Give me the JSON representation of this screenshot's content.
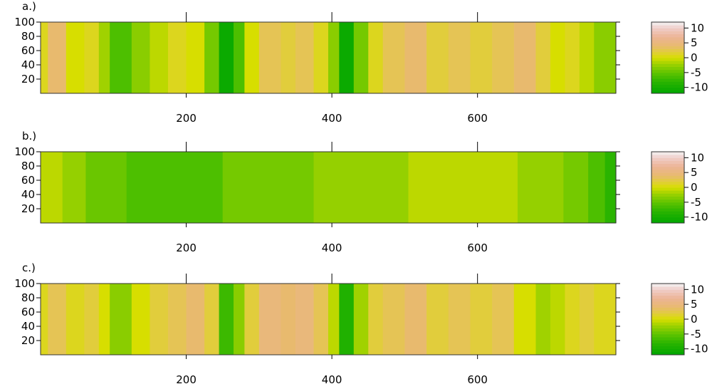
{
  "chart_data": [
    {
      "type": "heatmap",
      "panel_label": "a.)",
      "xlim": [
        0,
        790
      ],
      "ylim": [
        0,
        100
      ],
      "xticks": [
        200,
        400,
        600
      ],
      "yticks": [
        20,
        40,
        60,
        80,
        100
      ],
      "colorbar": {
        "ticks": [
          10,
          5,
          0,
          -5,
          -10
        ],
        "range": [
          -12,
          12
        ]
      },
      "columns": [
        {
          "x0": 0,
          "x1": 10,
          "v": 1
        },
        {
          "x0": 10,
          "x1": 35,
          "v": 4
        },
        {
          "x0": 35,
          "x1": 60,
          "v": 0
        },
        {
          "x0": 60,
          "x1": 80,
          "v": 1
        },
        {
          "x0": 80,
          "x1": 95,
          "v": -2
        },
        {
          "x0": 95,
          "x1": 125,
          "v": -6
        },
        {
          "x0": 125,
          "x1": 150,
          "v": -3
        },
        {
          "x0": 150,
          "x1": 175,
          "v": -1
        },
        {
          "x0": 175,
          "x1": 200,
          "v": 1
        },
        {
          "x0": 200,
          "x1": 225,
          "v": 0
        },
        {
          "x0": 225,
          "x1": 245,
          "v": -4
        },
        {
          "x0": 245,
          "x1": 265,
          "v": -11
        },
        {
          "x0": 265,
          "x1": 280,
          "v": -6
        },
        {
          "x0": 280,
          "x1": 300,
          "v": 0
        },
        {
          "x0": 300,
          "x1": 330,
          "v": 3
        },
        {
          "x0": 330,
          "x1": 350,
          "v": 2
        },
        {
          "x0": 350,
          "x1": 375,
          "v": 3
        },
        {
          "x0": 375,
          "x1": 395,
          "v": 1
        },
        {
          "x0": 395,
          "x1": 410,
          "v": -3
        },
        {
          "x0": 410,
          "x1": 430,
          "v": -11
        },
        {
          "x0": 430,
          "x1": 450,
          "v": -4
        },
        {
          "x0": 450,
          "x1": 470,
          "v": 1
        },
        {
          "x0": 470,
          "x1": 500,
          "v": 3
        },
        {
          "x0": 500,
          "x1": 530,
          "v": 4
        },
        {
          "x0": 530,
          "x1": 560,
          "v": 2
        },
        {
          "x0": 560,
          "x1": 590,
          "v": 3
        },
        {
          "x0": 590,
          "x1": 620,
          "v": 2
        },
        {
          "x0": 620,
          "x1": 650,
          "v": 3
        },
        {
          "x0": 650,
          "x1": 680,
          "v": 4
        },
        {
          "x0": 680,
          "x1": 700,
          "v": 2
        },
        {
          "x0": 700,
          "x1": 720,
          "v": 0
        },
        {
          "x0": 720,
          "x1": 740,
          "v": 1
        },
        {
          "x0": 740,
          "x1": 760,
          "v": -1
        },
        {
          "x0": 760,
          "x1": 790,
          "v": -3
        }
      ]
    },
    {
      "type": "heatmap",
      "panel_label": "b.)",
      "xlim": [
        0,
        790
      ],
      "ylim": [
        0,
        100
      ],
      "xticks": [
        200,
        400,
        600
      ],
      "yticks": [
        20,
        40,
        60,
        80,
        100
      ],
      "colorbar": {
        "ticks": [
          10,
          5,
          0,
          -5,
          -10
        ],
        "range": [
          -12,
          12
        ]
      },
      "columns": [
        {
          "x0": 0,
          "x1": 30,
          "v": -1
        },
        {
          "x0": 30,
          "x1": 62,
          "v": -2.5
        },
        {
          "x0": 62,
          "x1": 118,
          "v": -4.5
        },
        {
          "x0": 118,
          "x1": 250,
          "v": -6
        },
        {
          "x0": 250,
          "x1": 375,
          "v": -4
        },
        {
          "x0": 375,
          "x1": 505,
          "v": -2.5
        },
        {
          "x0": 505,
          "x1": 655,
          "v": -1
        },
        {
          "x0": 655,
          "x1": 718,
          "v": -2.5
        },
        {
          "x0": 718,
          "x1": 752,
          "v": -4
        },
        {
          "x0": 752,
          "x1": 775,
          "v": -6
        },
        {
          "x0": 775,
          "x1": 790,
          "v": -8
        }
      ]
    },
    {
      "type": "heatmap",
      "panel_label": "c.)",
      "xlim": [
        0,
        790
      ],
      "ylim": [
        0,
        100
      ],
      "xticks": [
        200,
        400,
        600
      ],
      "yticks": [
        20,
        40,
        60,
        80,
        100
      ],
      "colorbar": {
        "ticks": [
          10,
          5,
          0,
          -5,
          -10
        ],
        "range": [
          -12,
          12
        ]
      },
      "columns": [
        {
          "x0": 0,
          "x1": 10,
          "v": 1
        },
        {
          "x0": 10,
          "x1": 35,
          "v": 3
        },
        {
          "x0": 35,
          "x1": 60,
          "v": 1
        },
        {
          "x0": 60,
          "x1": 80,
          "v": 2
        },
        {
          "x0": 80,
          "x1": 95,
          "v": 0
        },
        {
          "x0": 95,
          "x1": 125,
          "v": -3
        },
        {
          "x0": 125,
          "x1": 150,
          "v": 0
        },
        {
          "x0": 150,
          "x1": 175,
          "v": 2
        },
        {
          "x0": 175,
          "x1": 200,
          "v": 3
        },
        {
          "x0": 200,
          "x1": 225,
          "v": 4
        },
        {
          "x0": 225,
          "x1": 245,
          "v": 2
        },
        {
          "x0": 245,
          "x1": 265,
          "v": -7
        },
        {
          "x0": 265,
          "x1": 280,
          "v": -3
        },
        {
          "x0": 280,
          "x1": 300,
          "v": 2
        },
        {
          "x0": 300,
          "x1": 330,
          "v": 5
        },
        {
          "x0": 330,
          "x1": 350,
          "v": 4
        },
        {
          "x0": 350,
          "x1": 375,
          "v": 5
        },
        {
          "x0": 375,
          "x1": 395,
          "v": 3
        },
        {
          "x0": 395,
          "x1": 410,
          "v": -1
        },
        {
          "x0": 410,
          "x1": 430,
          "v": -9
        },
        {
          "x0": 430,
          "x1": 450,
          "v": -2
        },
        {
          "x0": 450,
          "x1": 470,
          "v": 2
        },
        {
          "x0": 470,
          "x1": 500,
          "v": 3
        },
        {
          "x0": 500,
          "x1": 530,
          "v": 4
        },
        {
          "x0": 530,
          "x1": 560,
          "v": 2
        },
        {
          "x0": 560,
          "x1": 590,
          "v": 3
        },
        {
          "x0": 590,
          "x1": 620,
          "v": 2
        },
        {
          "x0": 620,
          "x1": 650,
          "v": 3
        },
        {
          "x0": 650,
          "x1": 680,
          "v": 0
        },
        {
          "x0": 680,
          "x1": 700,
          "v": -2
        },
        {
          "x0": 700,
          "x1": 720,
          "v": -1
        },
        {
          "x0": 720,
          "x1": 740,
          "v": 1
        },
        {
          "x0": 740,
          "x1": 760,
          "v": 2
        },
        {
          "x0": 760,
          "x1": 790,
          "v": 1
        }
      ]
    }
  ]
}
